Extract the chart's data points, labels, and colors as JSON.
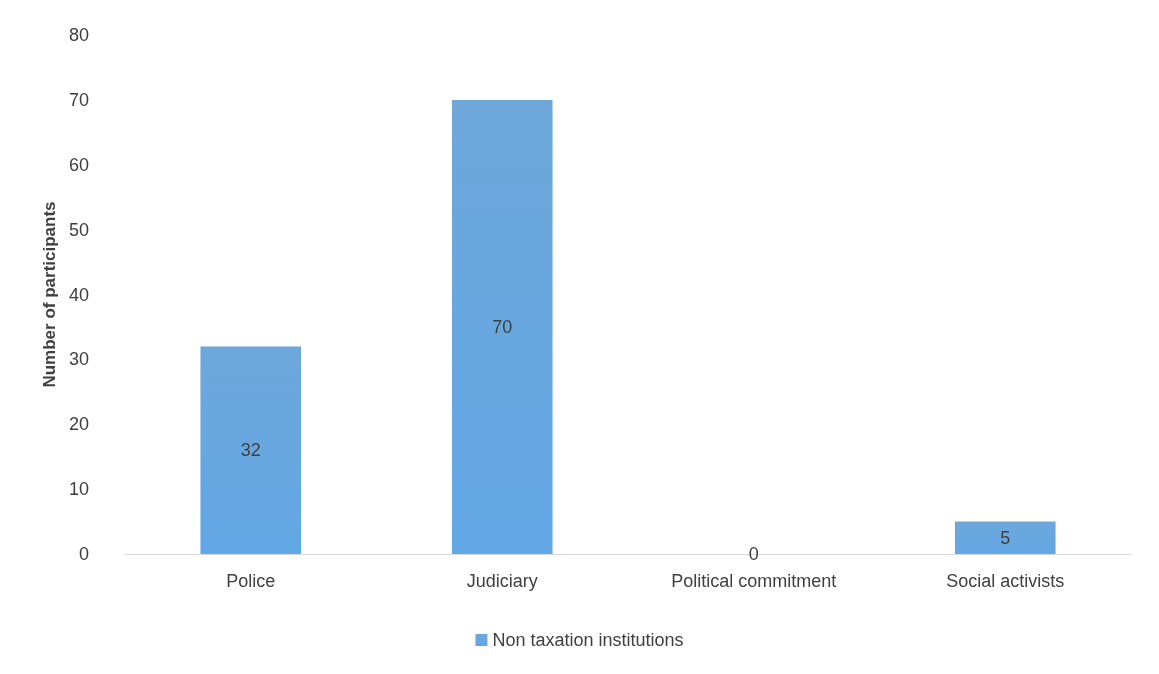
{
  "chart_data": {
    "type": "bar",
    "ylabel": "Number of participants",
    "categories": [
      "Police",
      "Judiciary",
      "Political commitment",
      "Social activists"
    ],
    "series": [
      {
        "name": "Non taxation institutions",
        "color": "#5b9bd5",
        "values": [
          32,
          70,
          0,
          5
        ]
      }
    ],
    "ylim": [
      0,
      80
    ],
    "yticks": [
      0,
      10,
      20,
      30,
      40,
      50,
      60,
      70,
      80
    ],
    "grid": false,
    "legend": "bottom",
    "data_labels": true
  }
}
